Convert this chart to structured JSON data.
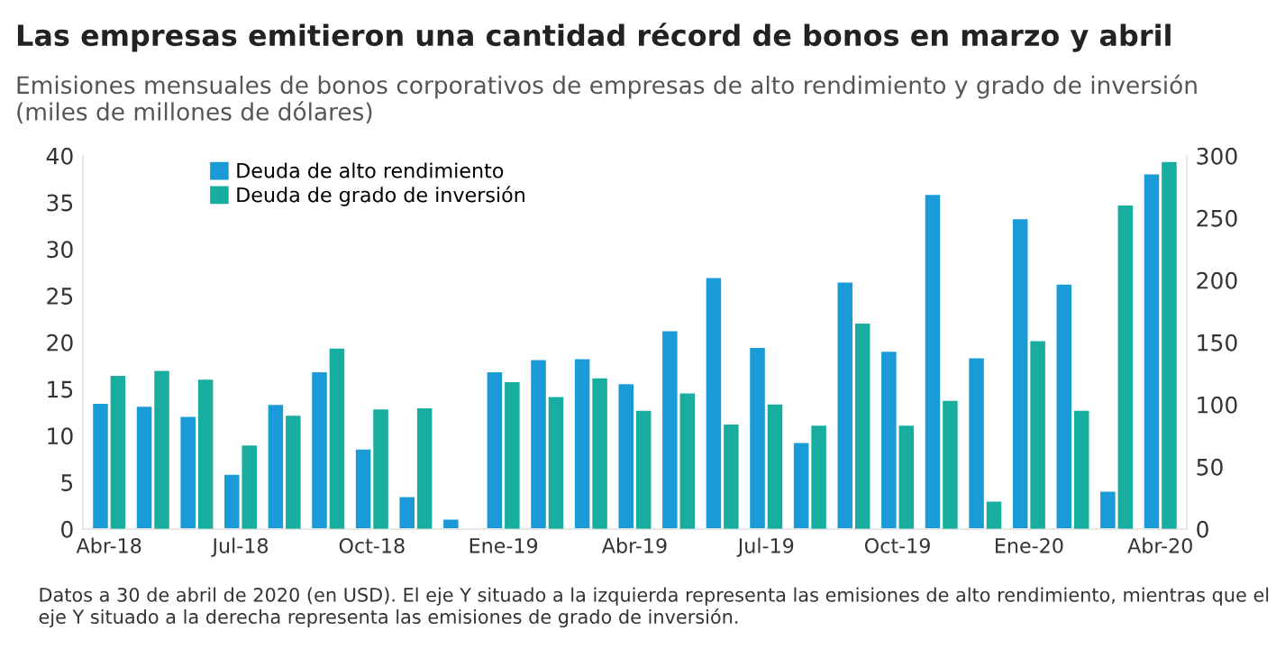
{
  "chart_data": {
    "type": "bar",
    "title": "Las empresas emitieron una cantidad récord de bonos en marzo y abril",
    "subtitle": "Emisiones mensuales de bonos corporativos de empresas de alto rendimiento y grado de inversión (miles de millones de dólares)",
    "categories": [
      "Abr-18",
      null,
      null,
      "Jul-18",
      null,
      null,
      "Oct-18",
      null,
      null,
      "Ene-19",
      null,
      null,
      "Abr-19",
      null,
      null,
      "Jul-19",
      null,
      null,
      "Oct-19",
      null,
      null,
      "Ene-20",
      null,
      null,
      "Abr-20"
    ],
    "series": [
      {
        "name": "Deuda de alto rendimiento",
        "color": "#1b9ad8",
        "values": [
          13.4,
          13.1,
          12.0,
          5.8,
          13.3,
          16.8,
          8.5,
          3.4,
          1.0,
          16.8,
          18.1,
          18.2,
          15.5,
          21.2,
          26.9,
          19.4,
          9.2,
          26.4,
          19.0,
          35.8,
          18.3,
          33.2,
          26.2,
          4.0,
          38.0
        ]
      },
      {
        "name": "Deuda de grado de inversión",
        "color": "#17ad9f",
        "axis": "y2",
        "values": [
          123,
          127,
          120,
          67,
          91,
          145,
          96,
          97,
          null,
          118,
          106,
          121,
          95,
          109,
          84,
          100,
          83,
          165,
          83,
          103,
          22,
          151,
          95,
          260,
          295
        ]
      }
    ],
    "ylim": [
      0,
      40
    ],
    "yticks": [
      0,
      5,
      10,
      15,
      20,
      25,
      30,
      35,
      40
    ],
    "y2lim": [
      0,
      300
    ],
    "y2ticks": [
      0,
      50,
      100,
      150,
      200,
      250,
      300
    ],
    "grid": false,
    "legend": "top left",
    "annotations": [
      "Datos a 30 de abril de 2020 (en USD). El eje Y situado a la izquierda representa las emisiones de alto rendimiento, mientras que el eje Y situado a la derecha representa las emisiones de grado de inversión."
    ]
  }
}
